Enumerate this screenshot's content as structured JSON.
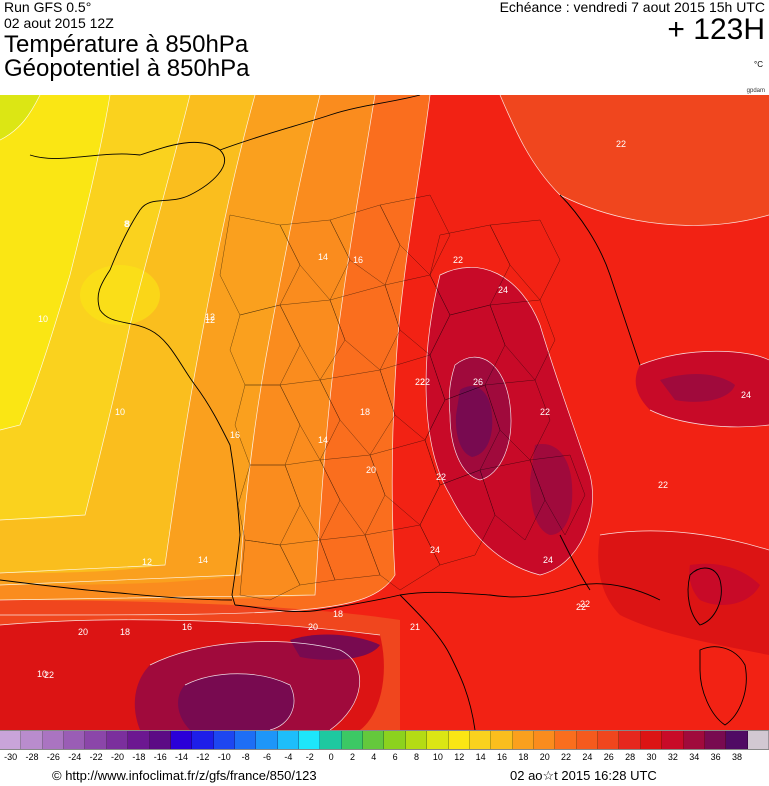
{
  "header": {
    "run": "Run GFS 0.5°",
    "run_date": "02 aout 2015 12Z",
    "title_1": "Température à 850hPa",
    "title_2": "Géopotentiel à 850hPa",
    "echeance": "Echéance : vendredi 7 aout 2015 15h UTC",
    "lead_time": "+ 123H",
    "unit": "°C",
    "credit_small": "gpdam"
  },
  "map": {
    "isotherm_labels": [
      "8",
      "10",
      "12",
      "14",
      "16",
      "18",
      "20",
      "22",
      "24",
      "26",
      "12",
      "10",
      "14",
      "16",
      "18",
      "20",
      "22",
      "24",
      "22",
      "22",
      "22",
      "24",
      "24",
      "22",
      "22",
      "21",
      "20",
      "18",
      "16",
      "14",
      "12",
      "10",
      "8",
      "22",
      "22",
      "22"
    ]
  },
  "legend": {
    "ticks": [
      "-30",
      "-28",
      "-26",
      "-24",
      "-22",
      "-20",
      "-18",
      "-16",
      "-14",
      "-12",
      "-10",
      "-8",
      "-6",
      "-4",
      "-2",
      "0",
      "2",
      "4",
      "6",
      "8",
      "10",
      "12",
      "14",
      "16",
      "18",
      "20",
      "22",
      "24",
      "26",
      "28",
      "30",
      "32",
      "34",
      "36",
      "38"
    ],
    "colors": [
      "#c9a4d9",
      "#b98ccd",
      "#aa74c1",
      "#9a5db5",
      "#8b46a9",
      "#7b2f9d",
      "#6c1891",
      "#5c0a85",
      "#2a00d8",
      "#1e1ee8",
      "#1e46f0",
      "#1e6ef5",
      "#1e96f8",
      "#1ebefa",
      "#1ee6fa",
      "#1ec8a0",
      "#3cc864",
      "#64c83c",
      "#8cd21e",
      "#b4dc14",
      "#dce614",
      "#fae614",
      "#fad21e",
      "#fabe1e",
      "#faa01e",
      "#fa8c1e",
      "#fa6e1e",
      "#f55a1e",
      "#f0461e",
      "#e6281e",
      "#dc1414",
      "#c80a28",
      "#a00a3c",
      "#780a50",
      "#500a64",
      "#d2c8d2"
    ]
  },
  "footer": {
    "url": "© http://www.infoclimat.fr/z/gfs/france/850/123",
    "date": "02 ao☆t 2015 16:28 UTC"
  }
}
